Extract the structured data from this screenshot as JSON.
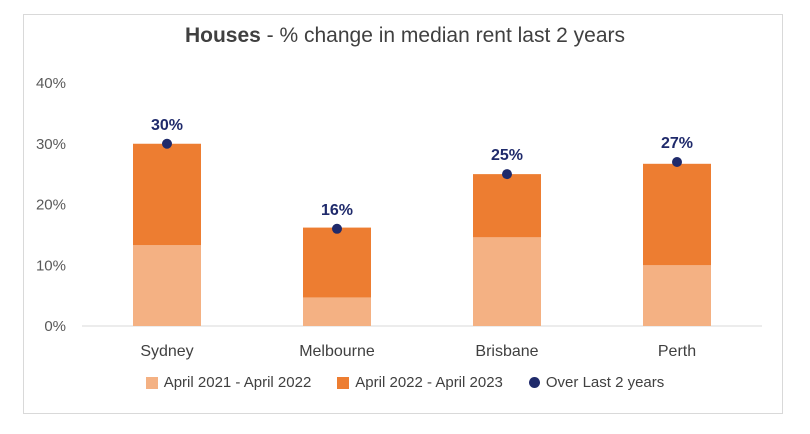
{
  "chart_data": {
    "type": "bar",
    "title_bold": "Houses",
    "title_rest": " - % change in median rent last 2 years",
    "categories": [
      "Sydney",
      "Melbourne",
      "Brisbane",
      "Perth"
    ],
    "series": [
      {
        "name": "April 2021 - April 2022",
        "values": [
          13.3,
          4.7,
          14.6,
          10.0
        ],
        "color": "#f4b183"
      },
      {
        "name": "April 2022 - April 2023",
        "values": [
          16.7,
          11.5,
          10.4,
          16.7
        ],
        "color": "#ed7d31"
      }
    ],
    "total": {
      "name": "Over Last 2 years",
      "values": [
        30,
        16,
        25,
        27
      ],
      "labels": [
        "30%",
        "16%",
        "25%",
        "27%"
      ],
      "color": "#1f2a6b"
    },
    "ylim": [
      0,
      40
    ],
    "yticks": [
      0,
      10,
      20,
      30,
      40
    ],
    "ytick_labels": [
      "0%",
      "10%",
      "20%",
      "30%",
      "40%"
    ],
    "stacked": true,
    "grid": false,
    "legend_position": "bottom"
  }
}
